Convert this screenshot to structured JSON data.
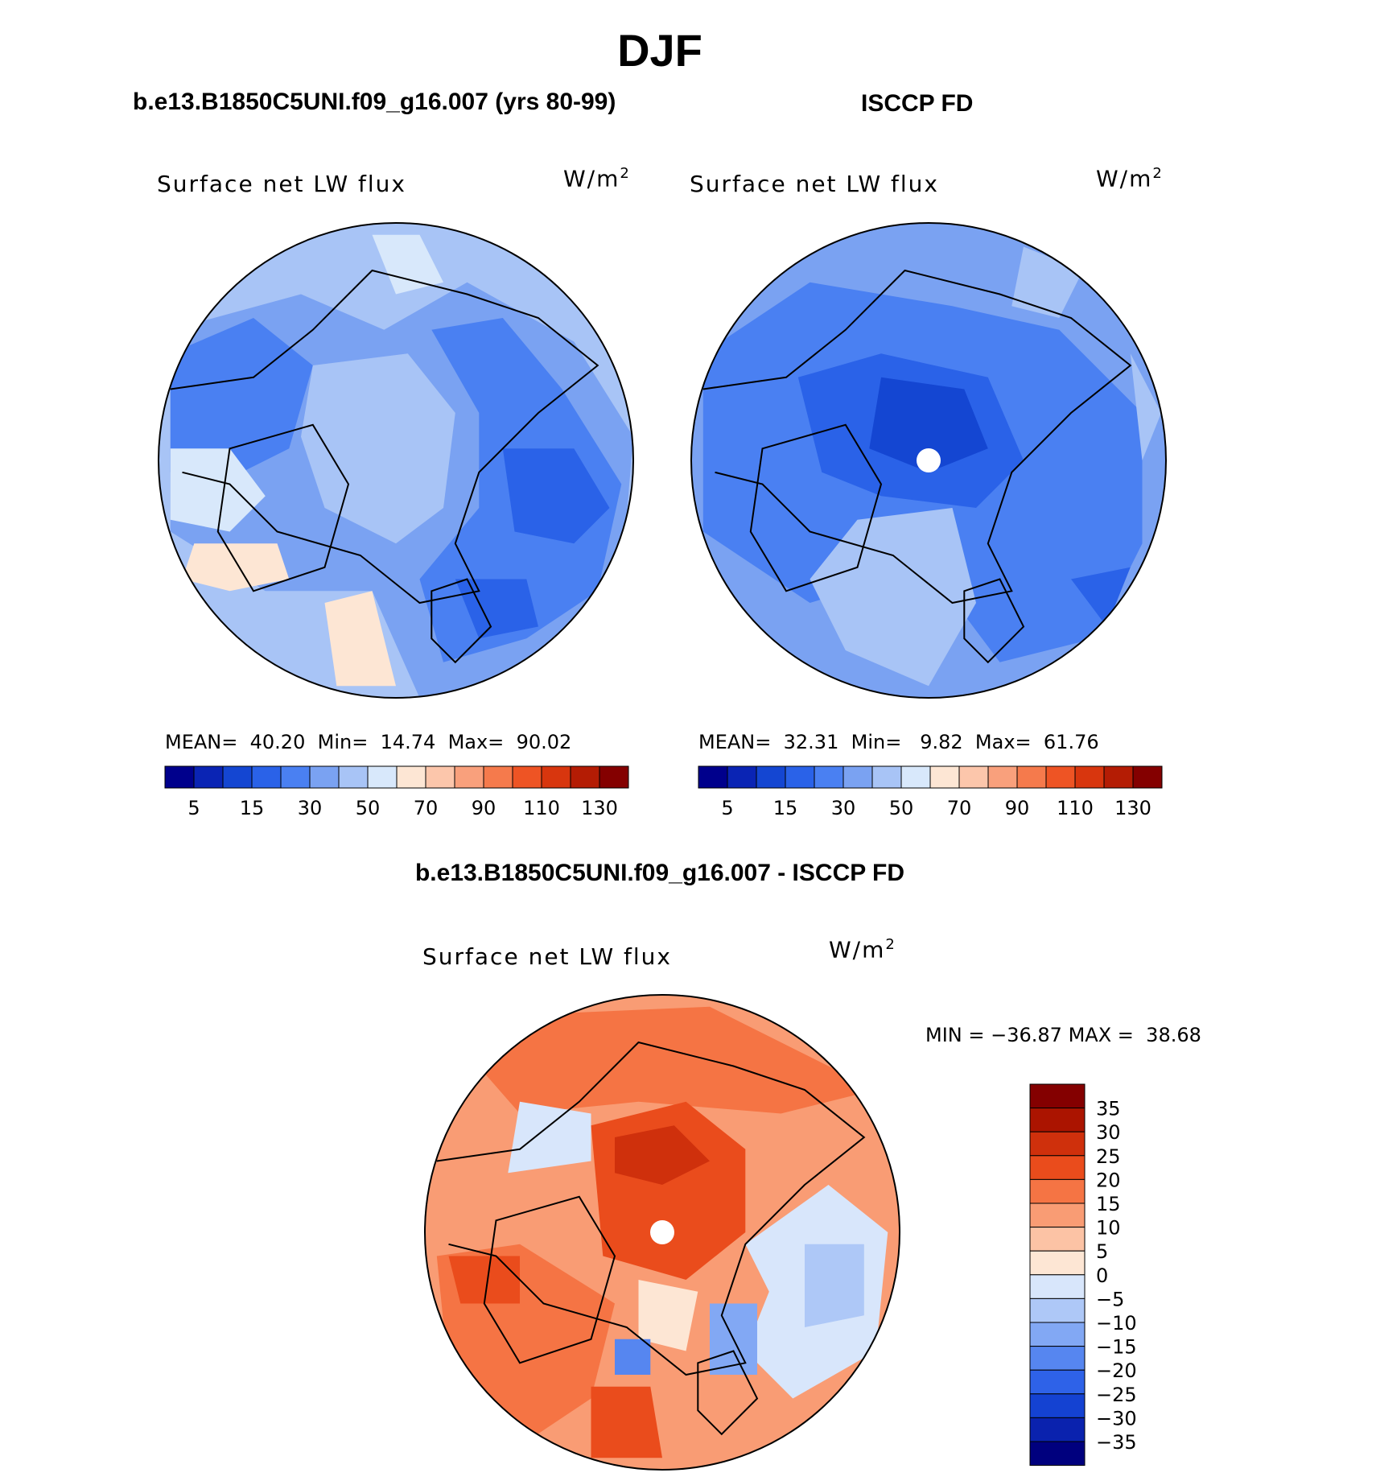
{
  "figure": {
    "title": "DJF",
    "model_title": "b.e13.B1850C5UNI.f09_g16.007 (yrs 80-99)",
    "obs_title": "ISCCP FD",
    "diff_title": "b.e13.B1850C5UNI.f09_g16.007 - ISCCP FD"
  },
  "colors": {
    "seq": [
      "#00008c",
      "#0a24b4",
      "#1446d2",
      "#2a62e8",
      "#4a80f2",
      "#7aa2f2",
      "#a8c4f6",
      "#d8e8fb",
      "#fde6d4",
      "#fcc6ab",
      "#f9a07c",
      "#f57a4c",
      "#ee5424",
      "#d8360e",
      "#b41c04",
      "#840000"
    ],
    "div": [
      "#00007e",
      "#0a22ae",
      "#1442d2",
      "#2e62e8",
      "#5686f0",
      "#82a8f4",
      "#aec8f7",
      "#d8e6fb",
      "#fde6d4",
      "#fcc3a5",
      "#f99c74",
      "#f57444",
      "#ea4c1c",
      "#cf300c",
      "#ab1400",
      "#840000"
    ]
  },
  "chart_data": [
    {
      "type": "heatmap",
      "projection": "north polar stereographic",
      "panel": "model",
      "variable": "Surface net LW flux",
      "units": "W/m",
      "units_exp": "2",
      "stats": {
        "mean_label": "MEAN=",
        "mean": "40.20",
        "min_label": "Min=",
        "min": "14.74",
        "max_label": "Max=",
        "max": "90.02"
      },
      "colorbar": {
        "orientation": "horizontal",
        "levels": [
          5,
          10,
          15,
          20,
          30,
          40,
          50,
          60,
          70,
          80,
          90,
          100,
          110,
          120,
          130
        ],
        "tick_labels": [
          "5",
          "15",
          "30",
          "50",
          "70",
          "90",
          "110",
          "130"
        ]
      }
    },
    {
      "type": "heatmap",
      "projection": "north polar stereographic",
      "panel": "observations",
      "variable": "Surface net LW flux",
      "units": "W/m",
      "units_exp": "2",
      "stats": {
        "mean_label": "MEAN=",
        "mean": "32.31",
        "min_label": "Min=",
        "min": "9.82",
        "max_label": "Max=",
        "max": "61.76"
      },
      "colorbar": {
        "orientation": "horizontal",
        "levels": [
          5,
          10,
          15,
          20,
          30,
          40,
          50,
          60,
          70,
          80,
          90,
          100,
          110,
          120,
          130
        ],
        "tick_labels": [
          "5",
          "15",
          "30",
          "50",
          "70",
          "90",
          "110",
          "130"
        ]
      }
    },
    {
      "type": "heatmap",
      "projection": "north polar stereographic",
      "panel": "difference",
      "variable": "Surface net LW flux",
      "units": "W/m",
      "units_exp": "2",
      "stats": {
        "min_label": "MIN =",
        "min": "−36.87",
        "max_label": "MAX =",
        "max": "38.68"
      },
      "colorbar": {
        "orientation": "vertical",
        "levels": [
          -35,
          -30,
          -25,
          -20,
          -15,
          -10,
          -5,
          0,
          5,
          10,
          15,
          20,
          25,
          30,
          35
        ],
        "tick_labels": [
          "35",
          "30",
          "25",
          "20",
          "15",
          "10",
          "5",
          "0",
          "−5",
          "−10",
          "−15",
          "−20",
          "−25",
          "−30",
          "−35"
        ]
      }
    }
  ]
}
